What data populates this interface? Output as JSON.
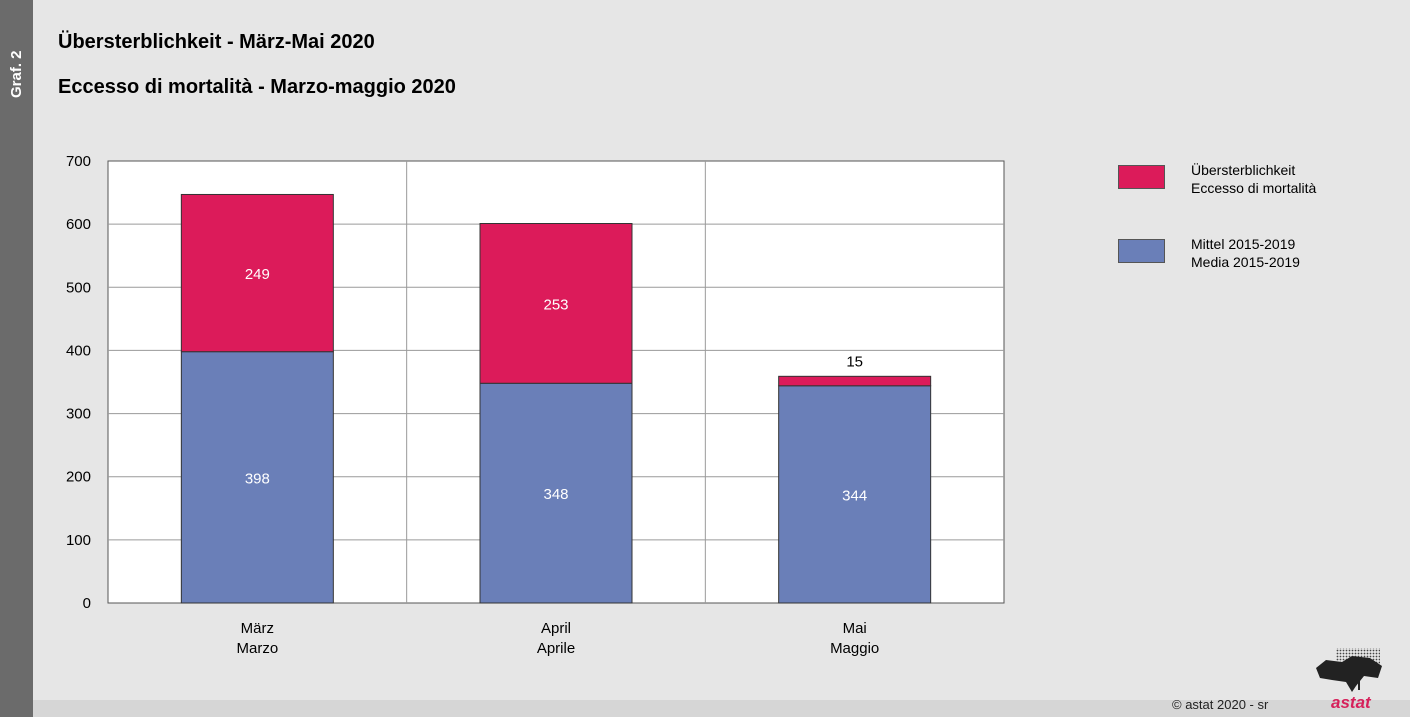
{
  "side_label": "Graf. 2",
  "title_de": "Übersterblichkeit - März-Mai 2020",
  "title_it": "Eccesso di mortalità - Marzo-maggio 2020",
  "colors": {
    "excess": "#dc1b5a",
    "mean": "#6a7fb8",
    "grid": "#9a9a9a",
    "plot_bg": "#ffffff",
    "accent": "#d6215b"
  },
  "legend": [
    {
      "line1": "Übersterblichkeit",
      "line2": "Eccesso di mortalità",
      "color_key": "excess"
    },
    {
      "line1": "Mittel 2015-2019",
      "line2": "Media 2015-2019",
      "color_key": "mean"
    }
  ],
  "footer": {
    "copyright": "astat 2020 - sr",
    "brand": "astat"
  },
  "chart_data": {
    "type": "bar",
    "stacked": true,
    "categories": [
      {
        "de": "März",
        "it": "Marzo"
      },
      {
        "de": "April",
        "it": "Aprile"
      },
      {
        "de": "Mai",
        "it": "Maggio"
      }
    ],
    "series": [
      {
        "name": "Mittel 2015-2019 / Media 2015-2019",
        "color_key": "mean",
        "values": [
          398,
          348,
          344
        ]
      },
      {
        "name": "Übersterblichkeit / Eccesso di mortalità",
        "color_key": "excess",
        "values": [
          249,
          253,
          15
        ]
      }
    ],
    "ylim": [
      0,
      700
    ],
    "yticks": [
      "0",
      "100",
      "200",
      "300",
      "400",
      "500",
      "600",
      "700"
    ],
    "grid": true,
    "legend_position": "right"
  }
}
